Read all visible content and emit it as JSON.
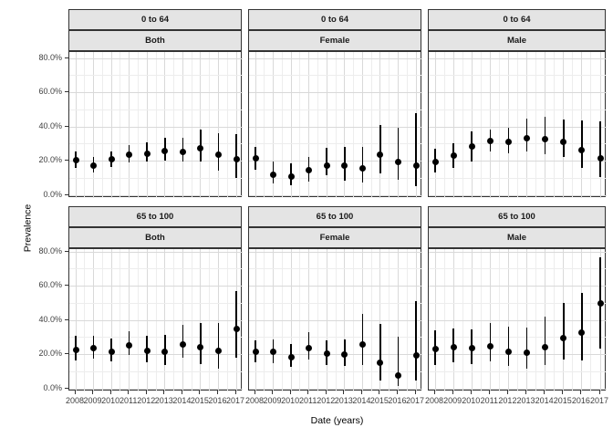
{
  "figure": {
    "y_axis_title": "Prevalence",
    "x_axis_title": "Date (years)",
    "colors": {
      "strip_bg": "#e4e4e4",
      "panel_border": "#333333",
      "grid_major": "#d9d9d9",
      "grid_minor": "#ededed",
      "point": "#000000",
      "axis_text": "#404040"
    }
  },
  "chart_data": {
    "type": "scatter",
    "subtype": "pointrange-faceted",
    "title": "",
    "xlabel": "Date (years)",
    "ylabel": "Prevalence",
    "x": [
      2008,
      2009,
      2010,
      2011,
      2012,
      2013,
      2014,
      2015,
      2016,
      2017
    ],
    "ylim": [
      0,
      80
    ],
    "y_unit": "percent",
    "y_ticks": [
      {
        "v": 80,
        "label": "80.0%"
      },
      {
        "v": 60,
        "label": "60.0%"
      },
      {
        "v": 40,
        "label": "40.0%"
      },
      {
        "v": 20,
        "label": "20.0%"
      },
      {
        "v": 0,
        "label": "0.0%"
      }
    ],
    "y_minor_ticks": [
      10,
      30,
      50,
      70
    ],
    "grid": true,
    "legend": "none",
    "facet_rows": [
      "0 to 64",
      "65 to 100"
    ],
    "facet_cols": [
      "Both",
      "Female",
      "Male"
    ],
    "series": [
      {
        "row": "0 to 64",
        "col": "Both",
        "values": [
          20.5,
          17.5,
          21,
          24,
          24.5,
          26,
          25.5,
          27.5,
          23.5,
          21
        ],
        "lower": [
          16,
          13.5,
          16.5,
          19,
          19.5,
          20.5,
          19.5,
          20,
          14.5,
          10
        ],
        "upper": [
          25.5,
          22.5,
          25.5,
          29.5,
          31,
          33.5,
          33.5,
          38.5,
          36.5,
          36
        ]
      },
      {
        "row": "0 to 64",
        "col": "Female",
        "values": [
          21.5,
          12,
          11,
          14.5,
          17.5,
          17.5,
          16,
          23.5,
          19.5,
          17.5
        ],
        "lower": [
          15,
          7,
          6,
          8,
          11.5,
          8.5,
          7.5,
          13,
          9,
          5.5
        ],
        "upper": [
          28.5,
          19.5,
          18.5,
          22.5,
          27.5,
          28.5,
          28.5,
          41,
          39.5,
          48
        ]
      },
      {
        "row": "0 to 64",
        "col": "Male",
        "values": [
          19.5,
          23,
          28.5,
          32,
          31,
          33.5,
          33,
          31,
          26.5,
          21.5
        ],
        "lower": [
          13.5,
          16,
          19.5,
          25.5,
          24.5,
          25.5,
          24,
          22.5,
          16,
          10.5
        ],
        "upper": [
          27,
          30.5,
          37.5,
          38.5,
          39.5,
          45,
          46,
          44.5,
          43.5,
          43
        ]
      },
      {
        "row": "65 to 100",
        "col": "Both",
        "values": [
          22.5,
          23.5,
          21.5,
          25.5,
          22,
          21.5,
          26,
          24.5,
          22,
          35
        ],
        "lower": [
          16.5,
          17.5,
          16,
          19.5,
          15.5,
          14,
          18,
          14.5,
          11.5,
          18
        ],
        "upper": [
          31,
          31,
          29.5,
          33.5,
          31,
          31.5,
          37.5,
          38.5,
          38.5,
          57
        ]
      },
      {
        "row": "65 to 100",
        "col": "Female",
        "values": [
          21.5,
          21.5,
          18.5,
          24,
          20.5,
          20,
          26,
          15,
          7.5,
          19.5
        ],
        "lower": [
          15.5,
          15,
          13,
          17,
          14,
          13.5,
          14,
          5,
          1.5,
          5
        ],
        "upper": [
          28.5,
          29,
          26,
          33,
          28.5,
          29,
          44,
          38,
          30.5,
          51
        ]
      },
      {
        "row": "65 to 100",
        "col": "Male",
        "values": [
          23,
          24.5,
          24,
          25,
          21.5,
          21,
          24.5,
          29.5,
          33,
          50
        ],
        "lower": [
          14,
          15.5,
          14.5,
          16,
          13.5,
          11.5,
          14,
          17,
          16.5,
          23.5
        ],
        "upper": [
          34,
          35,
          34.5,
          38.5,
          36.5,
          36,
          42,
          50,
          56,
          77
        ]
      }
    ]
  }
}
